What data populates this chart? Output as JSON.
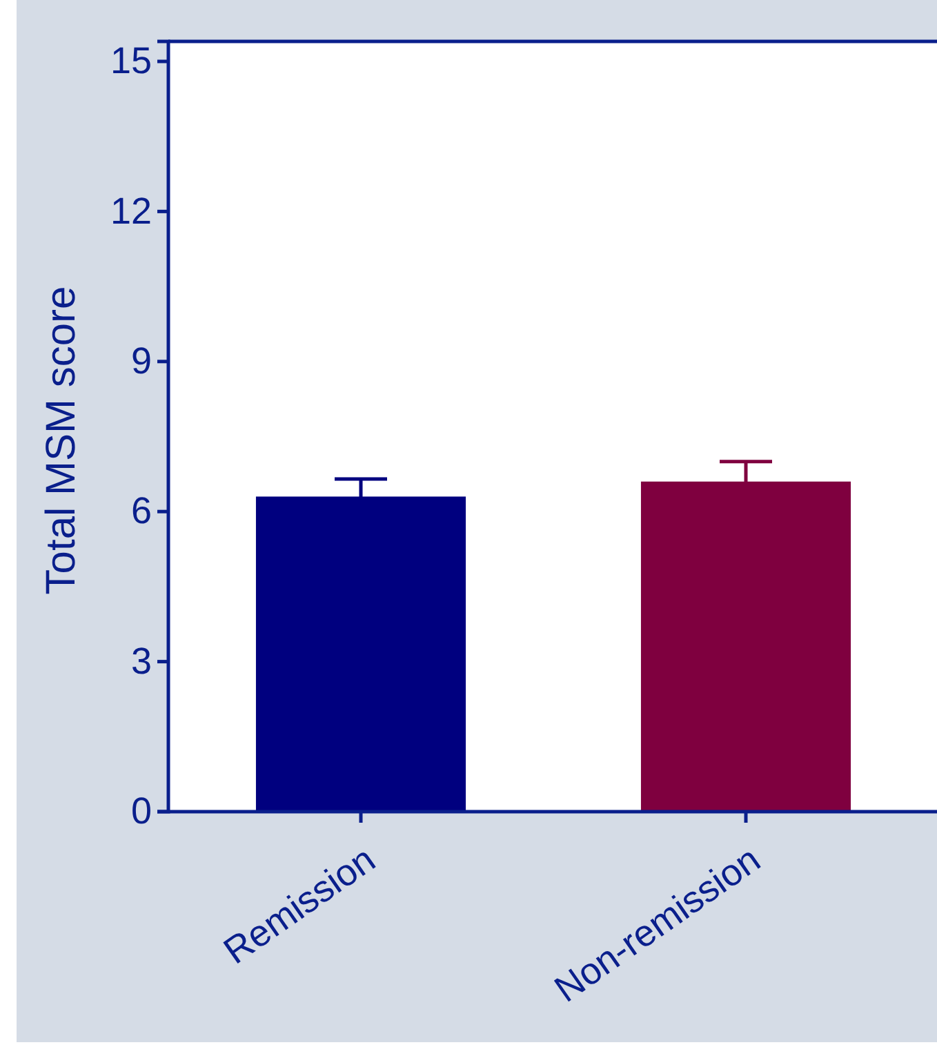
{
  "chart_data": {
    "type": "bar",
    "ylabel": "Total MSM score",
    "categories": [
      "Remission",
      "Non-remission"
    ],
    "values": [
      6.3,
      6.6
    ],
    "colors": [
      "#00007f",
      "#7f003f"
    ],
    "errors": [
      0.35,
      0.4
    ],
    "ylim": [
      0,
      15.4
    ],
    "yticks": [
      0,
      3,
      6,
      9,
      12,
      15
    ],
    "grid": false
  }
}
